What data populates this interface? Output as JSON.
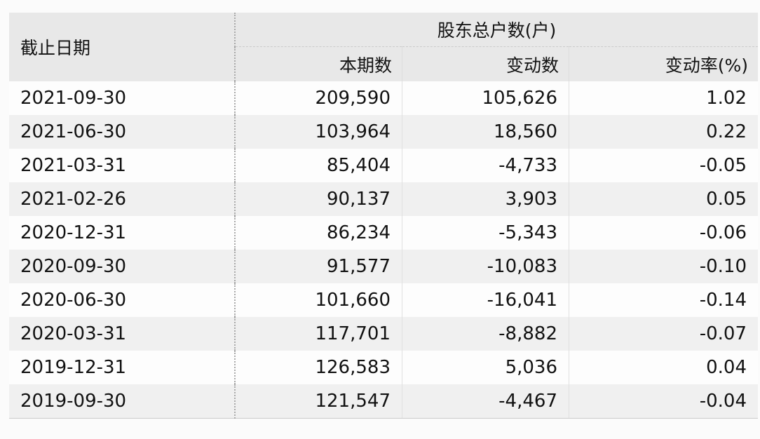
{
  "header": {
    "date": "截止日期",
    "group": "股东总户数(户)",
    "current": "本期数",
    "change": "变动数",
    "rate": "变动率(%)"
  },
  "rows": [
    {
      "date": "2021-09-30",
      "current": "209,590",
      "change": "105,626",
      "rate": "1.02"
    },
    {
      "date": "2021-06-30",
      "current": "103,964",
      "change": "18,560",
      "rate": "0.22"
    },
    {
      "date": "2021-03-31",
      "current": "85,404",
      "change": "-4,733",
      "rate": "-0.05"
    },
    {
      "date": "2021-02-26",
      "current": "90,137",
      "change": "3,903",
      "rate": "0.05"
    },
    {
      "date": "2020-12-31",
      "current": "86,234",
      "change": "-5,343",
      "rate": "-0.06"
    },
    {
      "date": "2020-09-30",
      "current": "91,577",
      "change": "-10,083",
      "rate": "-0.10"
    },
    {
      "date": "2020-06-30",
      "current": "101,660",
      "change": "-16,041",
      "rate": "-0.14"
    },
    {
      "date": "2020-03-31",
      "current": "117,701",
      "change": "-8,882",
      "rate": "-0.07"
    },
    {
      "date": "2019-12-31",
      "current": "126,583",
      "change": "5,036",
      "rate": "0.04"
    },
    {
      "date": "2019-09-30",
      "current": "121,547",
      "change": "-4,467",
      "rate": "-0.04"
    }
  ]
}
